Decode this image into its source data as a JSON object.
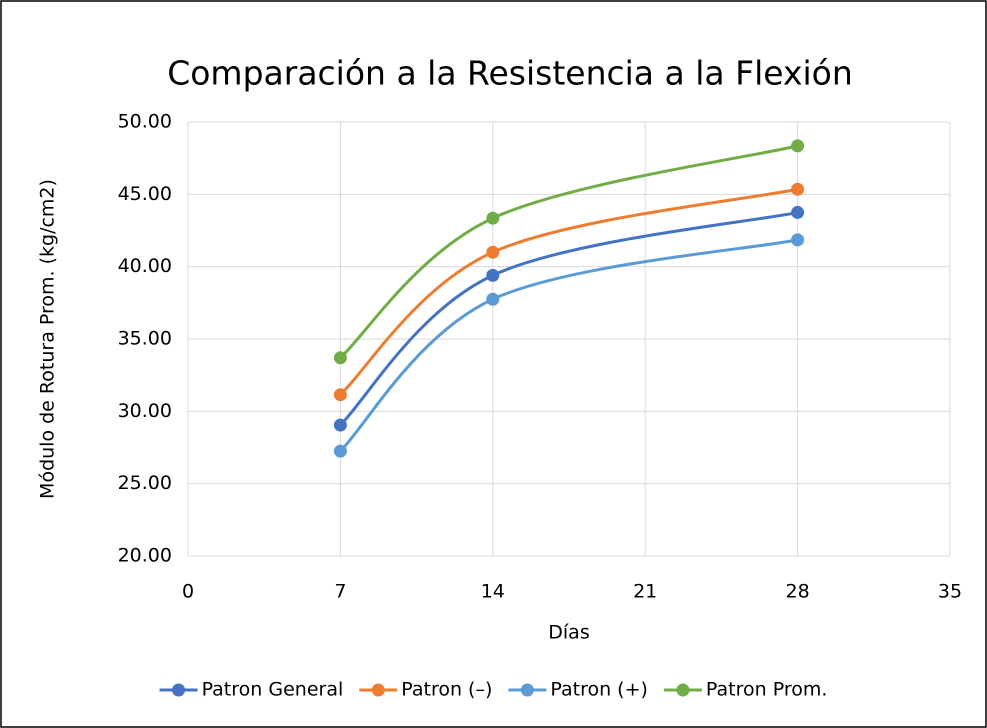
{
  "chart_data": {
    "type": "line",
    "smooth": true,
    "markers": true,
    "title": "Comparación a la Resistencia a la Flexión",
    "xlabel": "Días",
    "ylabel": "Módulo de Rotura Prom. (kg/cm2)",
    "x": [
      7,
      14,
      28
    ],
    "series": [
      {
        "name": "Patron General",
        "color": "#4472c4",
        "values": [
          29.05,
          39.4,
          43.75
        ]
      },
      {
        "name": "Patron (–)",
        "color": "#ed7d31",
        "values": [
          31.15,
          41.0,
          45.35
        ]
      },
      {
        "name": "Patron (+)",
        "color": "#5b9bd5",
        "values": [
          27.25,
          37.75,
          41.85
        ]
      },
      {
        "name": "Patron Prom.",
        "color": "#70ad47",
        "values": [
          33.7,
          43.35,
          48.35
        ]
      }
    ],
    "xlim": [
      0,
      35
    ],
    "xticks": [
      0,
      7,
      14,
      21,
      28,
      35
    ],
    "ylim": [
      20,
      50
    ],
    "yticks": [
      {
        "value": 20,
        "label": "20.00"
      },
      {
        "value": 25,
        "label": "25.00"
      },
      {
        "value": 30,
        "label": "30.00"
      },
      {
        "value": 35,
        "label": "35.00"
      },
      {
        "value": 40,
        "label": "40.00"
      },
      {
        "value": 45,
        "label": "45.00"
      },
      {
        "value": 50,
        "label": "50.00"
      }
    ],
    "grid": true,
    "legend": "bottom"
  }
}
